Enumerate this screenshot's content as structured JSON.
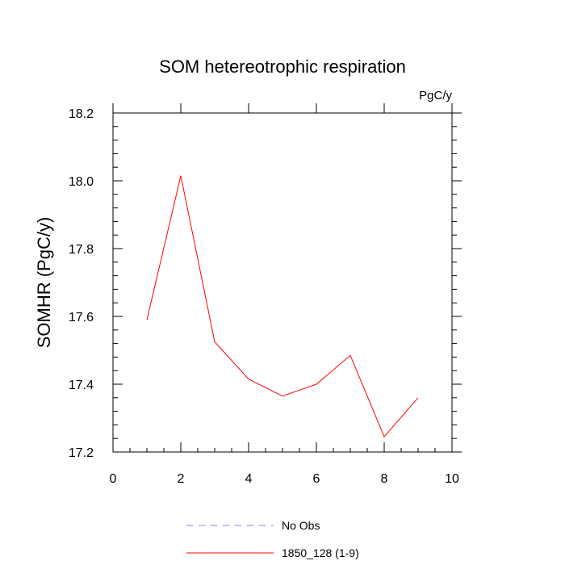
{
  "chart_data": {
    "type": "line",
    "title": "SOM hetereotrophic respiration",
    "units_label": "PgC/y",
    "ylabel": "SOMHR  (PgC/y)",
    "xlabel": "",
    "xlim": [
      0,
      10
    ],
    "ylim": [
      17.2,
      18.2
    ],
    "x_ticks": [
      0,
      2,
      4,
      6,
      8,
      10
    ],
    "x_tick_labels": [
      "0",
      "2",
      "4",
      "6",
      "8",
      "10"
    ],
    "y_ticks": [
      17.2,
      17.4,
      17.6,
      17.8,
      18.0,
      18.2
    ],
    "y_tick_labels": [
      "17.2",
      "17.4",
      "17.6",
      "17.8",
      "18.0",
      "18.2"
    ],
    "grid": false,
    "legend_position": "bottom",
    "series": [
      {
        "name": "No Obs",
        "color": "#8080ff",
        "dash": "dashed",
        "x": [],
        "y": []
      },
      {
        "name": "1850_128 (1-9)",
        "color": "#ff0000",
        "dash": "solid",
        "x": [
          1,
          2,
          3,
          4,
          5,
          6,
          7,
          8,
          9
        ],
        "y": [
          17.59,
          18.015,
          17.525,
          17.415,
          17.365,
          17.4,
          17.485,
          17.245,
          17.36
        ]
      }
    ]
  }
}
